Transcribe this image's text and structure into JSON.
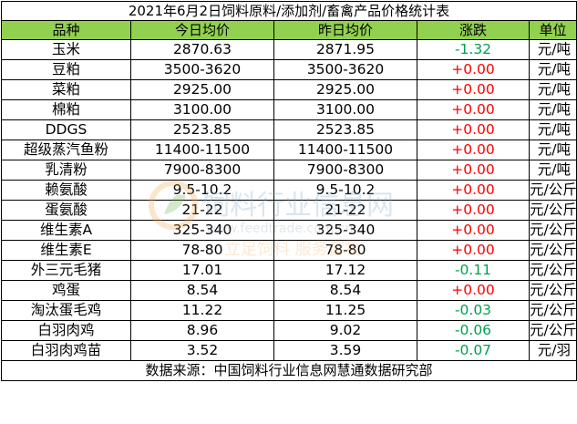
{
  "title": "2021年6月2日饲料原料/添加剂/畜禽产品价格统计表",
  "headers": [
    "品种",
    "今日均价",
    "昨日均价",
    "涨跌",
    "单位"
  ],
  "rows": [
    {
      "name": "玉米",
      "today": "2870.63",
      "yesterday": "2871.95",
      "change": "-1.32",
      "unit": "元/吨"
    },
    {
      "name": "豆粕",
      "today": "3500-3620",
      "yesterday": "3500-3620",
      "change": "+0.00",
      "unit": "元/吨"
    },
    {
      "name": "菜粕",
      "today": "2925.00",
      "yesterday": "2925.00",
      "change": "+0.00",
      "unit": "元/吨"
    },
    {
      "name": "棉粕",
      "today": "3100.00",
      "yesterday": "3100.00",
      "change": "+0.00",
      "unit": "元/吨"
    },
    {
      "name": "DDGS",
      "today": "2523.85",
      "yesterday": "2523.85",
      "change": "+0.00",
      "unit": "元/吨"
    },
    {
      "name": "超级蒸汽鱼粉",
      "today": "11400-11500",
      "yesterday": "11400-11500",
      "change": "+0.00",
      "unit": "元/吨"
    },
    {
      "name": "乳清粉",
      "today": "7900-8300",
      "yesterday": "7900-8300",
      "change": "+0.00",
      "unit": "元/吨"
    },
    {
      "name": "赖氨酸",
      "today": "9.5-10.2",
      "yesterday": "9.5-10.2",
      "change": "+0.00",
      "unit": "元/公斤"
    },
    {
      "name": "蛋氨酸",
      "today": "21-22",
      "yesterday": "21-22",
      "change": "+0.00",
      "unit": "元/公斤"
    },
    {
      "name": "维生素A",
      "today": "325-340",
      "yesterday": "325-340",
      "change": "+0.00",
      "unit": "元/公斤"
    },
    {
      "name": "维生素E",
      "today": "78-80",
      "yesterday": "78-80",
      "change": "+0.00",
      "unit": "元/公斤"
    },
    {
      "name": "外三元毛猪",
      "today": "17.01",
      "yesterday": "17.12",
      "change": "-0.11",
      "unit": "元/公斤"
    },
    {
      "name": "鸡蛋",
      "today": "8.54",
      "yesterday": "8.54",
      "change": "+0.00",
      "unit": "元/公斤"
    },
    {
      "name": "淘汰蛋毛鸡",
      "today": "11.22",
      "yesterday": "11.25",
      "change": "-0.03",
      "unit": "元/公斤"
    },
    {
      "name": "白羽肉鸡",
      "today": "8.96",
      "yesterday": "9.02",
      "change": "-0.06",
      "unit": "元/公斤"
    },
    {
      "name": "白羽肉鸡苗",
      "today": "3.52",
      "yesterday": "3.59",
      "change": "-0.07",
      "unit": "元/羽"
    }
  ],
  "footer": "数据来源：中国饲料行业信息网慧通数据研究部",
  "watermark": {
    "line1": "饲料行业信息网",
    "line2": "www.feedtrade.com.cn",
    "line3": "立足饲料 服务畜牧"
  },
  "colors": {
    "header_bg": "#92d050",
    "positive": "#ff0000",
    "negative": "#00a050"
  }
}
